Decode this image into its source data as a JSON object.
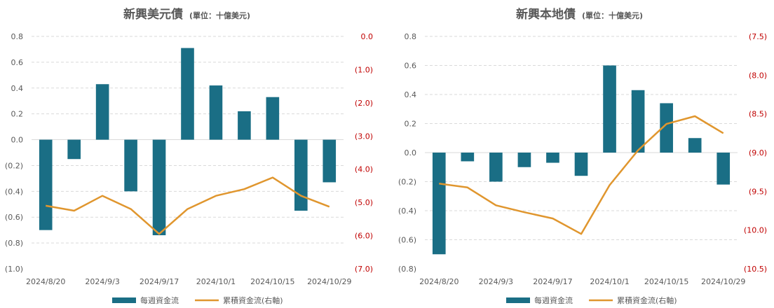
{
  "colors": {
    "bar": "#1a6e85",
    "line": "#e0962e",
    "grid": "#d9d9d9",
    "right_axis_text": "#c00000",
    "text": "#595959"
  },
  "chart_data": [
    {
      "type": "bar+line",
      "title": "新興美元債",
      "subtitle": "(單位：十億美元)",
      "categories": [
        "2024/8/20",
        "2024/8/27",
        "2024/9/3",
        "2024/9/10",
        "2024/9/17",
        "2024/9/24",
        "2024/10/1",
        "2024/10/8",
        "2024/10/15",
        "2024/10/22",
        "2024/10/29"
      ],
      "x_tick_labels": [
        "2024/8/20",
        "",
        "2024/9/3",
        "",
        "2024/9/17",
        "",
        "2024/10/1",
        "",
        "2024/10/15",
        "",
        "2024/10/29"
      ],
      "series": [
        {
          "name": "每週資金流",
          "axis": "left",
          "kind": "bar",
          "values": [
            -0.7,
            -0.15,
            0.43,
            -0.4,
            -0.74,
            0.71,
            0.42,
            0.22,
            0.33,
            -0.55,
            -0.33
          ]
        },
        {
          "name": "累積資金流(右軸)",
          "axis": "right",
          "kind": "line",
          "values": [
            -5.1,
            -5.25,
            -4.8,
            -5.2,
            -5.95,
            -5.2,
            -4.8,
            -4.6,
            -4.25,
            -4.8,
            -5.13
          ]
        }
      ],
      "y_left": {
        "range": [
          -1.0,
          0.8
        ],
        "ticks": [
          "0.8",
          "0.6",
          "0.4",
          "0.2",
          "0.0",
          "(0.2)",
          "(0.4)",
          "(0.6)",
          "(0.8)",
          "(1.0)"
        ]
      },
      "y_right": {
        "range": [
          -7.0,
          0.0
        ],
        "ticks": [
          "0.0",
          "(1.0)",
          "(2.0)",
          "(3.0)",
          "(4.0)",
          "(5.0)",
          "(6.0)",
          "(7.0)"
        ]
      },
      "grid": true,
      "legend": "bottom",
      "legend_items": [
        "每週資金流",
        "累積資金流(右軸)"
      ]
    },
    {
      "type": "bar+line",
      "title": "新興本地債",
      "subtitle": "(單位：十億美元)",
      "categories": [
        "2024/8/20",
        "2024/8/27",
        "2024/9/3",
        "2024/9/10",
        "2024/9/17",
        "2024/9/24",
        "2024/10/1",
        "2024/10/8",
        "2024/10/15",
        "2024/10/22",
        "2024/10/29"
      ],
      "x_tick_labels": [
        "2024/8/20",
        "",
        "2024/9/3",
        "",
        "2024/9/17",
        "",
        "2024/10/1",
        "",
        "2024/10/15",
        "",
        "2024/10/29"
      ],
      "series": [
        {
          "name": "每週資金流",
          "axis": "left",
          "kind": "bar",
          "values": [
            -0.7,
            -0.06,
            -0.2,
            -0.1,
            -0.07,
            -0.16,
            0.6,
            0.43,
            0.34,
            0.1,
            -0.22
          ]
        },
        {
          "name": "累積資金流(右軸)",
          "axis": "right",
          "kind": "line",
          "values": [
            -9.4,
            -9.45,
            -9.68,
            -9.77,
            -9.85,
            -10.05,
            -9.42,
            -8.97,
            -8.63,
            -8.53,
            -8.75
          ]
        }
      ],
      "y_left": {
        "range": [
          -0.8,
          0.8
        ],
        "ticks": [
          "0.8",
          "0.6",
          "0.4",
          "0.2",
          "0.0",
          "(0.2)",
          "(0.4)",
          "(0.6)",
          "(0.8)"
        ]
      },
      "y_right": {
        "range": [
          -10.5,
          -7.5
        ],
        "ticks": [
          "(7.5)",
          "(8.0)",
          "(8.5)",
          "(9.0)",
          "(9.5)",
          "(10.0)",
          "(10.5)"
        ]
      },
      "grid": true,
      "legend": "bottom",
      "legend_items": [
        "每週資金流",
        "累積資金流(右軸)"
      ]
    }
  ]
}
